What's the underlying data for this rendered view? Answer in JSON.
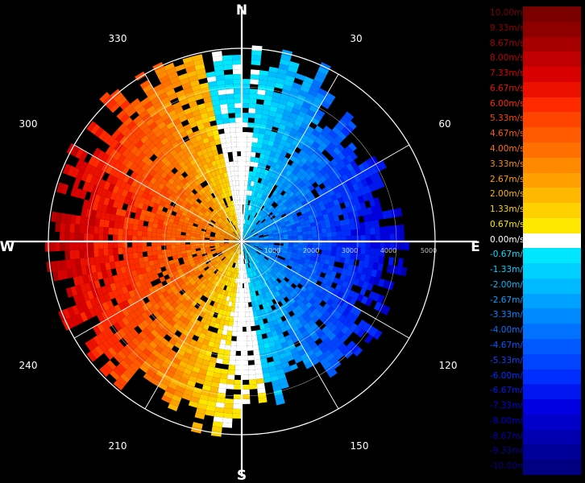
{
  "compass": {
    "north": "N",
    "east": "E",
    "south": "S",
    "west": "W",
    "degree_labels": [
      "30",
      "60",
      "120",
      "150",
      "210",
      "240",
      "300",
      "330"
    ]
  },
  "range_labels": [
    "1000",
    "2000",
    "3000",
    "4000",
    "5000"
  ],
  "legend": {
    "entries": [
      {
        "label": "10.00m/s",
        "color": "#7a0000"
      },
      {
        "label": "9.33m/s",
        "color": "#8e0000"
      },
      {
        "label": "8.67m/s",
        "color": "#a60000"
      },
      {
        "label": "8.00m/s",
        "color": "#c00000"
      },
      {
        "label": "7.33m/s",
        "color": "#d80000"
      },
      {
        "label": "6.67m/s",
        "color": "#ec1000"
      },
      {
        "label": "6.00m/s",
        "color": "#ff2a00"
      },
      {
        "label": "5.33m/s",
        "color": "#ff4400"
      },
      {
        "label": "4.67m/s",
        "color": "#ff5a00"
      },
      {
        "label": "4.00m/s",
        "color": "#ff7000"
      },
      {
        "label": "3.33m/s",
        "color": "#ff8a00"
      },
      {
        "label": "2.67m/s",
        "color": "#ffa000"
      },
      {
        "label": "2.00m/s",
        "color": "#ffb800"
      },
      {
        "label": "1.33m/s",
        "color": "#ffd000"
      },
      {
        "label": "0.67m/s",
        "color": "#ffe800"
      },
      {
        "label": "0.00m/s",
        "color": "#ffffff"
      },
      {
        "label": "-0.67m/s",
        "color": "#00e6ff"
      },
      {
        "label": "-1.33m/s",
        "color": "#00d0ff"
      },
      {
        "label": "-2.00m/s",
        "color": "#00baff"
      },
      {
        "label": "-2.67m/s",
        "color": "#00a2ff"
      },
      {
        "label": "-3.33m/s",
        "color": "#008aff"
      },
      {
        "label": "-4.00m/s",
        "color": "#0072ff"
      },
      {
        "label": "-4.67m/s",
        "color": "#005aff"
      },
      {
        "label": "-5.33m/s",
        "color": "#0044ff"
      },
      {
        "label": "-6.00m/s",
        "color": "#002eff"
      },
      {
        "label": "-6.67m/s",
        "color": "#0018f0"
      },
      {
        "label": "-7.33m/s",
        "color": "#0000e0"
      },
      {
        "label": "-8.00m/s",
        "color": "#0000c8"
      },
      {
        "label": "-8.67m/s",
        "color": "#0000b0"
      },
      {
        "label": "-9.33m/s",
        "color": "#000098"
      },
      {
        "label": "-10.00m/s",
        "color": "#000080"
      }
    ]
  }
}
